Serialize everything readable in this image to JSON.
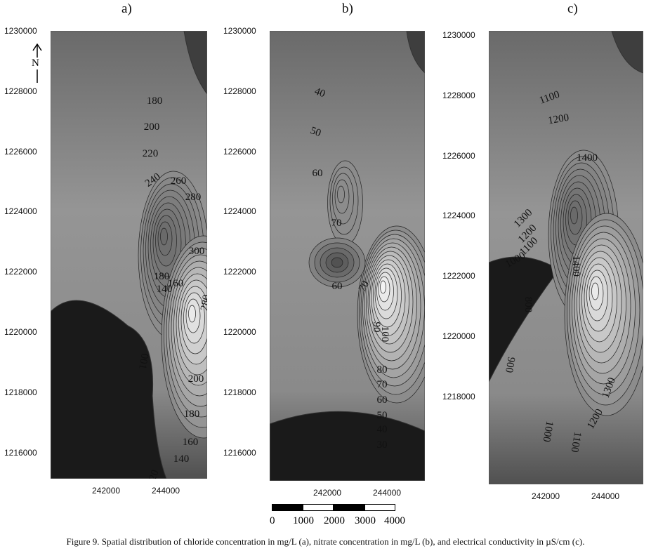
{
  "caption": "Figure 9. Spatial distribution of chloride concentration in mg/L (a), nitrate concentration in mg/L (b), and electrical conductivity in µS/cm (c).",
  "north_label": "N",
  "scale_bar": {
    "labels": [
      "0",
      "1000",
      "2000",
      "3000",
      "4000"
    ]
  },
  "chart_data": [
    {
      "type": "heatmap",
      "subtype": "contour",
      "title": "a)",
      "variable": "chloride (mg/L)",
      "x_ticks": [
        "242000",
        "244000"
      ],
      "y_ticks": [
        "1230000",
        "1228000",
        "1226000",
        "1224000",
        "1222000",
        "1220000",
        "1218000",
        "1216000"
      ],
      "contour_labels": [
        "180",
        "200",
        "220",
        "240",
        "260",
        "280",
        "300",
        "180",
        "160",
        "140",
        "001",
        "200",
        "180",
        "160",
        "140",
        "120",
        "280",
        "260"
      ]
    },
    {
      "type": "heatmap",
      "subtype": "contour",
      "title": "b)",
      "variable": "nitrate (mg/L)",
      "x_ticks": [
        "242000",
        "244000"
      ],
      "y_ticks": [
        "1230000",
        "1228000",
        "1226000",
        "1224000",
        "1222000",
        "1220000",
        "1218000",
        "1216000"
      ],
      "contour_labels": [
        "40",
        "50",
        "60",
        "70",
        "60",
        "70",
        "100",
        "90",
        "80",
        "70",
        "60",
        "50",
        "40",
        "30"
      ]
    },
    {
      "type": "heatmap",
      "subtype": "contour",
      "title": "c)",
      "variable": "electrical conductivity (µS/cm)",
      "x_ticks": [
        "242000",
        "244000"
      ],
      "y_ticks": [
        "1230000",
        "1228000",
        "1226000",
        "1224000",
        "1222000",
        "1220000",
        "1218000"
      ],
      "contour_labels": [
        "1100",
        "1200",
        "1400",
        "1300",
        "1200",
        "1000",
        "1400",
        "1100",
        "800",
        "900",
        "1000",
        "1100",
        "1200",
        "1300"
      ]
    }
  ]
}
